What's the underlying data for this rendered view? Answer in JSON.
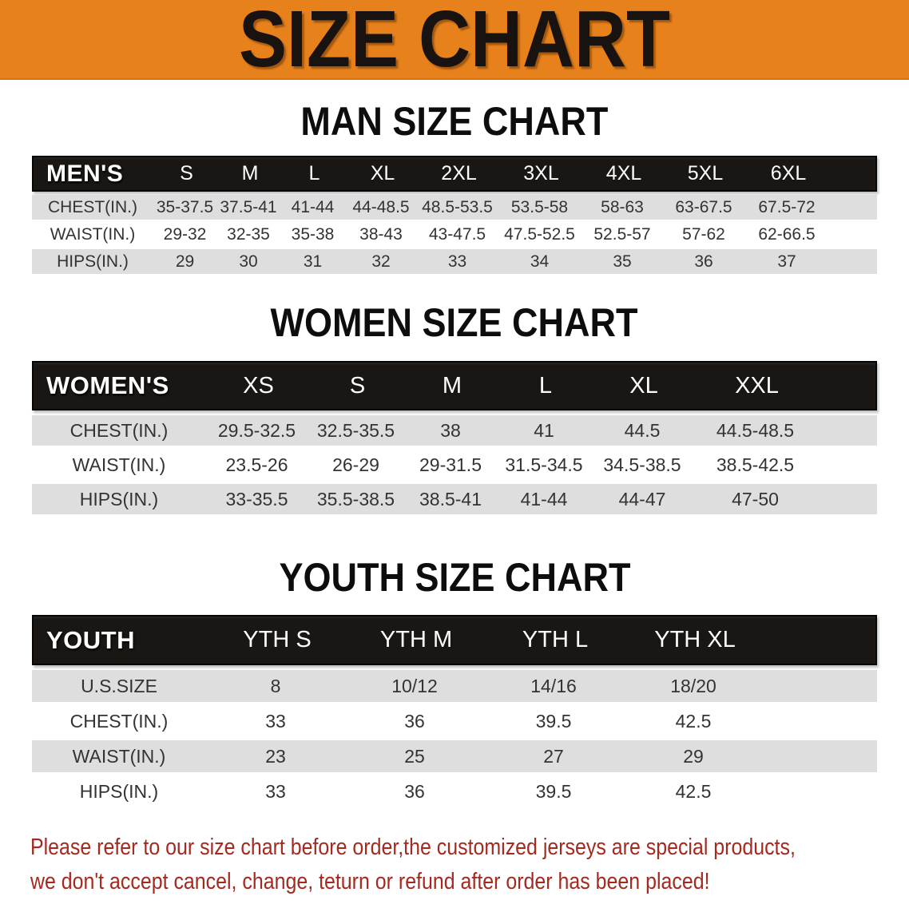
{
  "banner": {
    "title": "SIZE CHART"
  },
  "colors": {
    "banner_orange": "#e6811c",
    "bar_black": "#1a1613",
    "row_gray": "#dedede",
    "note_red": "#a5291f"
  },
  "sections": [
    {
      "id": "men",
      "heading": "MAN SIZE CHART",
      "header": [
        "MEN'S",
        "S",
        "M",
        "L",
        "XL",
        "2XL",
        "3XL",
        "4XL",
        "5XL",
        "6XL"
      ],
      "rows": [
        {
          "label": "CHEST(IN.)",
          "shade": "gray",
          "values": [
            "35-37.5",
            "37.5-41",
            "41-44",
            "44-48.5",
            "48.5-53.5",
            "53.5-58",
            "58-63",
            "63-67.5",
            "67.5-72"
          ]
        },
        {
          "label": "WAIST(IN.)",
          "shade": "white",
          "values": [
            "29-32",
            "32-35",
            "35-38",
            "38-43",
            "43-47.5",
            "47.5-52.5",
            "52.5-57",
            "57-62",
            "62-66.5"
          ]
        },
        {
          "label": "HIPS(IN.)",
          "shade": "gray",
          "values": [
            "29",
            "30",
            "31",
            "32",
            "33",
            "34",
            "35",
            "36",
            "37"
          ]
        }
      ]
    },
    {
      "id": "women",
      "heading": "WOMEN SIZE CHART",
      "header": [
        "WOMEN'S",
        "XS",
        "S",
        "M",
        "L",
        "XL",
        "XXL"
      ],
      "rows": [
        {
          "label": "CHEST(IN.)",
          "shade": "gray",
          "values": [
            "29.5-32.5",
            "32.5-35.5",
            "38",
            "41",
            "44.5",
            "44.5-48.5"
          ]
        },
        {
          "label": "WAIST(IN.)",
          "shade": "white",
          "values": [
            "23.5-26",
            "26-29",
            "29-31.5",
            "31.5-34.5",
            "34.5-38.5",
            "38.5-42.5"
          ]
        },
        {
          "label": "HIPS(IN.)",
          "shade": "gray",
          "values": [
            "33-35.5",
            "35.5-38.5",
            "38.5-41",
            "41-44",
            "44-47",
            "47-50"
          ]
        }
      ]
    },
    {
      "id": "youth",
      "heading": "YOUTH SIZE CHART",
      "header": [
        "YOUTH",
        "YTH S",
        "YTH M",
        "YTH L",
        "YTH XL"
      ],
      "rows": [
        {
          "label": "U.S.SIZE",
          "shade": "gray",
          "values": [
            "8",
            "10/12",
            "14/16",
            "18/20"
          ]
        },
        {
          "label": "CHEST(IN.)",
          "shade": "white",
          "values": [
            "33",
            "36",
            "39.5",
            "42.5"
          ]
        },
        {
          "label": "WAIST(IN.)",
          "shade": "gray",
          "values": [
            "23",
            "25",
            "27",
            "29"
          ]
        },
        {
          "label": "HIPS(IN.)",
          "shade": "white",
          "values": [
            "33",
            "36",
            "39.5",
            "42.5"
          ]
        }
      ]
    }
  ],
  "note": {
    "lines": [
      "Please refer to our size chart before order,the customized jerseys are special products,",
      "we don't accept cancel, change, teturn or refund after order has been placed!"
    ]
  }
}
